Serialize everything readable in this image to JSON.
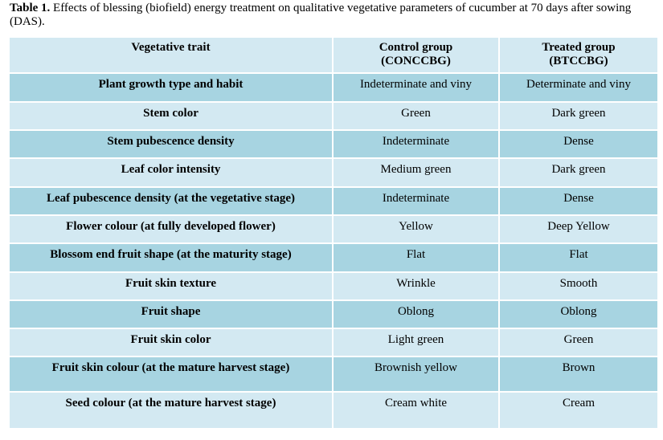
{
  "caption": {
    "label": "Table 1.",
    "text": "Effects of blessing (biofield) energy treatment on qualitative vegetative parameters of cucumber at 70 days after sowing (DAS)."
  },
  "table": {
    "header": [
      [
        "Vegetative trait"
      ],
      [
        "Control group",
        "(CONCCBG)"
      ],
      [
        "Treated group",
        "(BTCCBG)"
      ]
    ],
    "rows": [
      [
        "Plant growth type and habit",
        "Indeterminate and viny",
        "Determinate and viny"
      ],
      [
        "Stem color",
        "Green",
        "Dark green"
      ],
      [
        "Stem pubescence density",
        "Indeterminate",
        "Dense"
      ],
      [
        "Leaf color intensity",
        "Medium green",
        "Dark green"
      ],
      [
        "Leaf pubescence density (at the vegetative stage)",
        "Indeterminate",
        "Dense"
      ],
      [
        "Flower colour (at fully developed flower)",
        "Yellow",
        "Deep Yellow"
      ],
      [
        "Blossom end fruit shape (at the maturity stage)",
        "Flat",
        "Flat"
      ],
      [
        "Fruit skin texture",
        "Wrinkle",
        "Smooth"
      ],
      [
        "Fruit shape",
        "Oblong",
        "Oblong"
      ],
      [
        "Fruit skin color",
        "Light green",
        "Green"
      ],
      [
        "Fruit skin colour (at the mature harvest stage)",
        "Brownish yellow",
        "Brown"
      ],
      [
        "Seed colour (at the mature harvest stage)",
        "Cream white",
        "Cream"
      ]
    ]
  }
}
